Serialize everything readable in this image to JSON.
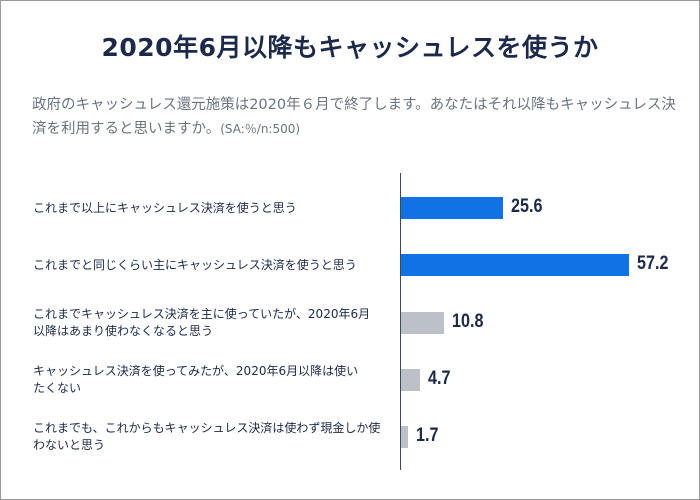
{
  "title": "2020年6月以降もキャッシュレスを使うか",
  "subtitle": {
    "text": "政府のキャッシュレス還元施策は2020年６月で終了します。あなたはそれ以降もキャッシュレス決済を利用すると思いますか。",
    "note": "(SA:％/n:500)"
  },
  "colors": {
    "highlight": "#0f72e5",
    "other": "#bcc1c7",
    "text": "#1b2a4a"
  },
  "chart_data": {
    "type": "bar",
    "orientation": "horizontal",
    "categories": [
      "これまで以上にキャッシュレス決済を使うと思う",
      "これまでと同じくらい主にキャッシュレス決済を使うと思う",
      "これまでキャッシュレス決済を主に使っていたが、2020年6月以降はあまり使わなくなると思う",
      "キャッシュレス決済を使ってみたが、2020年6月以降は使いたくない",
      "これまでも、これからもキャッシュレス決済は使わず現金しか使わないと思う"
    ],
    "values": [
      25.6,
      57.2,
      10.8,
      4.7,
      1.7
    ],
    "value_labels": [
      "25.6",
      "57.2",
      "10.8",
      "4.7",
      "1.7"
    ],
    "bar_colors": [
      "#0f72e5",
      "#0f72e5",
      "#bcc1c7",
      "#bcc1c7",
      "#bcc1c7"
    ],
    "xlim": [
      0,
      70
    ],
    "grid": false,
    "legend": "none"
  }
}
